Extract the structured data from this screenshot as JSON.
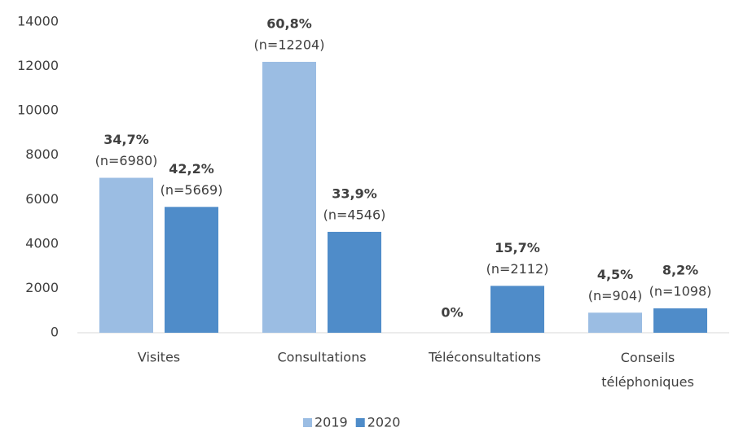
{
  "chart_data": {
    "type": "bar",
    "categories": [
      "Visites",
      "Consultations",
      "Téléconsultations",
      "Conseils téléphoniques"
    ],
    "series": [
      {
        "name": "2019",
        "color": "#9bbde3",
        "values": [
          6980,
          12204,
          0,
          904
        ],
        "value_labels": [
          "(n=6980)",
          "(n=12204)",
          null,
          "(n=904)"
        ],
        "share_labels": [
          "34,7%",
          "60,8%",
          "0%",
          "4,5%"
        ]
      },
      {
        "name": "2020",
        "color": "#4f8cc9",
        "values": [
          5669,
          4546,
          2112,
          1098
        ],
        "value_labels": [
          "(n=5669)",
          "(n=4546)",
          "(n=2112)",
          "(n=1098)"
        ],
        "share_labels": [
          "42,2%",
          "33,9%",
          "15,7%",
          "8,2%"
        ]
      }
    ],
    "ylim": [
      0,
      14000
    ],
    "yticks": [
      0,
      2000,
      4000,
      6000,
      8000,
      10000,
      12000,
      14000
    ],
    "grid": false,
    "legend": "bottom"
  }
}
